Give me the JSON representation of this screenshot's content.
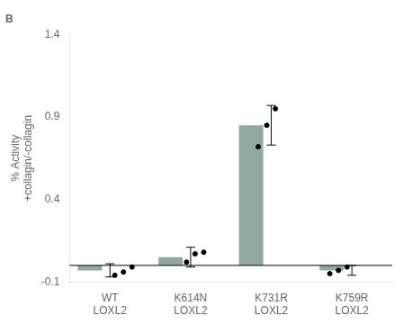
{
  "chart_data": {
    "type": "bar",
    "title": "B",
    "categories": [
      "WT LOXL2",
      "K614N LOXL2",
      "K731R LOXL2",
      "K759R LOXL2"
    ],
    "values": [
      -0.03,
      0.05,
      0.85,
      -0.03
    ],
    "error": [
      0.04,
      0.06,
      0.12,
      0.03
    ],
    "individual_points": [
      [
        -0.06,
        -0.04,
        -0.01
      ],
      [
        0.02,
        0.07,
        0.08
      ],
      [
        0.72,
        0.85,
        0.95
      ],
      [
        -0.05,
        -0.03,
        -0.01
      ]
    ],
    "color": "#8fa8a0",
    "ylabel": "% Activity\n+collagin/-collagin",
    "ylim": [
      -0.1,
      1.4
    ],
    "yticks": [
      -0.1,
      0.4,
      0.9,
      1.4
    ],
    "grid": false
  }
}
